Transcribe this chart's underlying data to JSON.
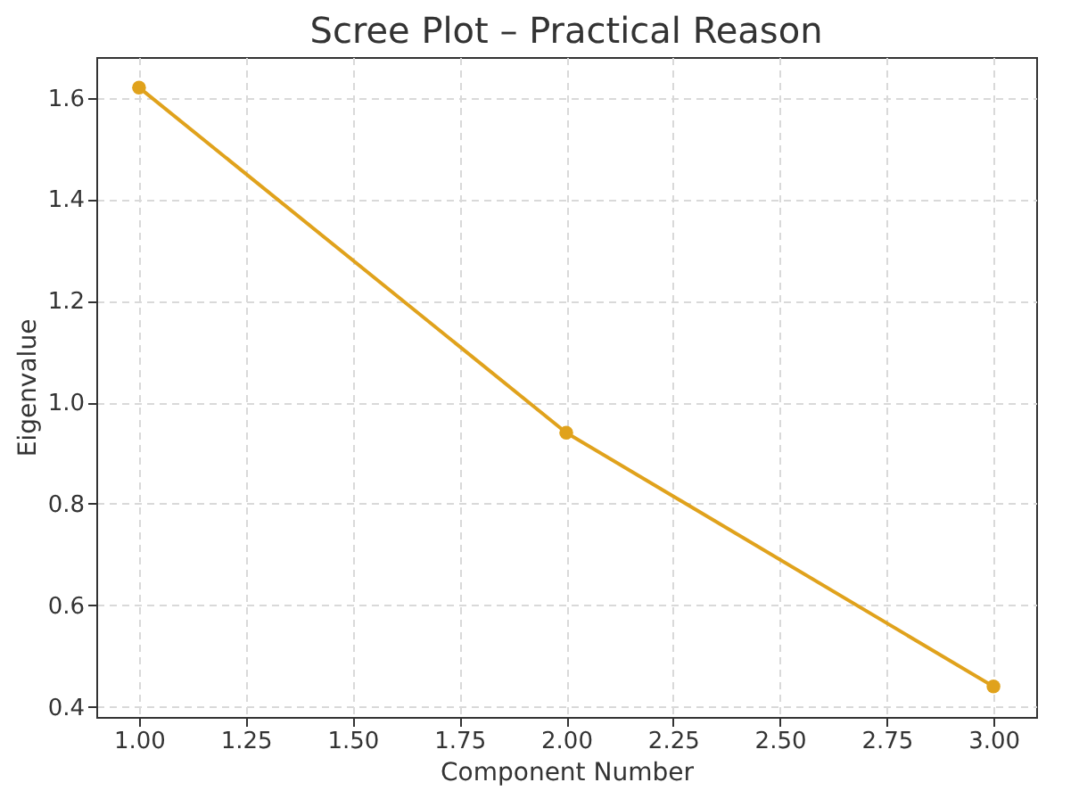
{
  "chart_data": {
    "type": "line",
    "title": "Scree Plot – Practical Reason",
    "xlabel": "Component Number",
    "ylabel": "Eigenvalue",
    "x": [
      1,
      2,
      3
    ],
    "series": [
      {
        "color": "#e0a21c",
        "values": [
          1.62,
          0.94,
          0.44
        ]
      }
    ],
    "xlim": [
      0.9,
      3.1
    ],
    "ylim": [
      0.38,
      1.68
    ],
    "xticks": [
      {
        "value": 1,
        "label": "1.00"
      },
      {
        "value": 1.25,
        "label": "1.25"
      },
      {
        "value": 1.5,
        "label": "1.50"
      },
      {
        "value": 1.75,
        "label": "1.75"
      },
      {
        "value": 2,
        "label": "2.00"
      },
      {
        "value": 2.25,
        "label": "2.25"
      },
      {
        "value": 2.5,
        "label": "2.50"
      },
      {
        "value": 2.75,
        "label": "2.75"
      },
      {
        "value": 3,
        "label": "3.00"
      }
    ],
    "yticks": [
      0.4,
      0.6,
      0.8,
      {
        "value": 1,
        "label": "1.0"
      },
      1.2,
      1.4,
      1.6
    ],
    "grid": true,
    "marker": "circle",
    "line_style": "solid"
  }
}
